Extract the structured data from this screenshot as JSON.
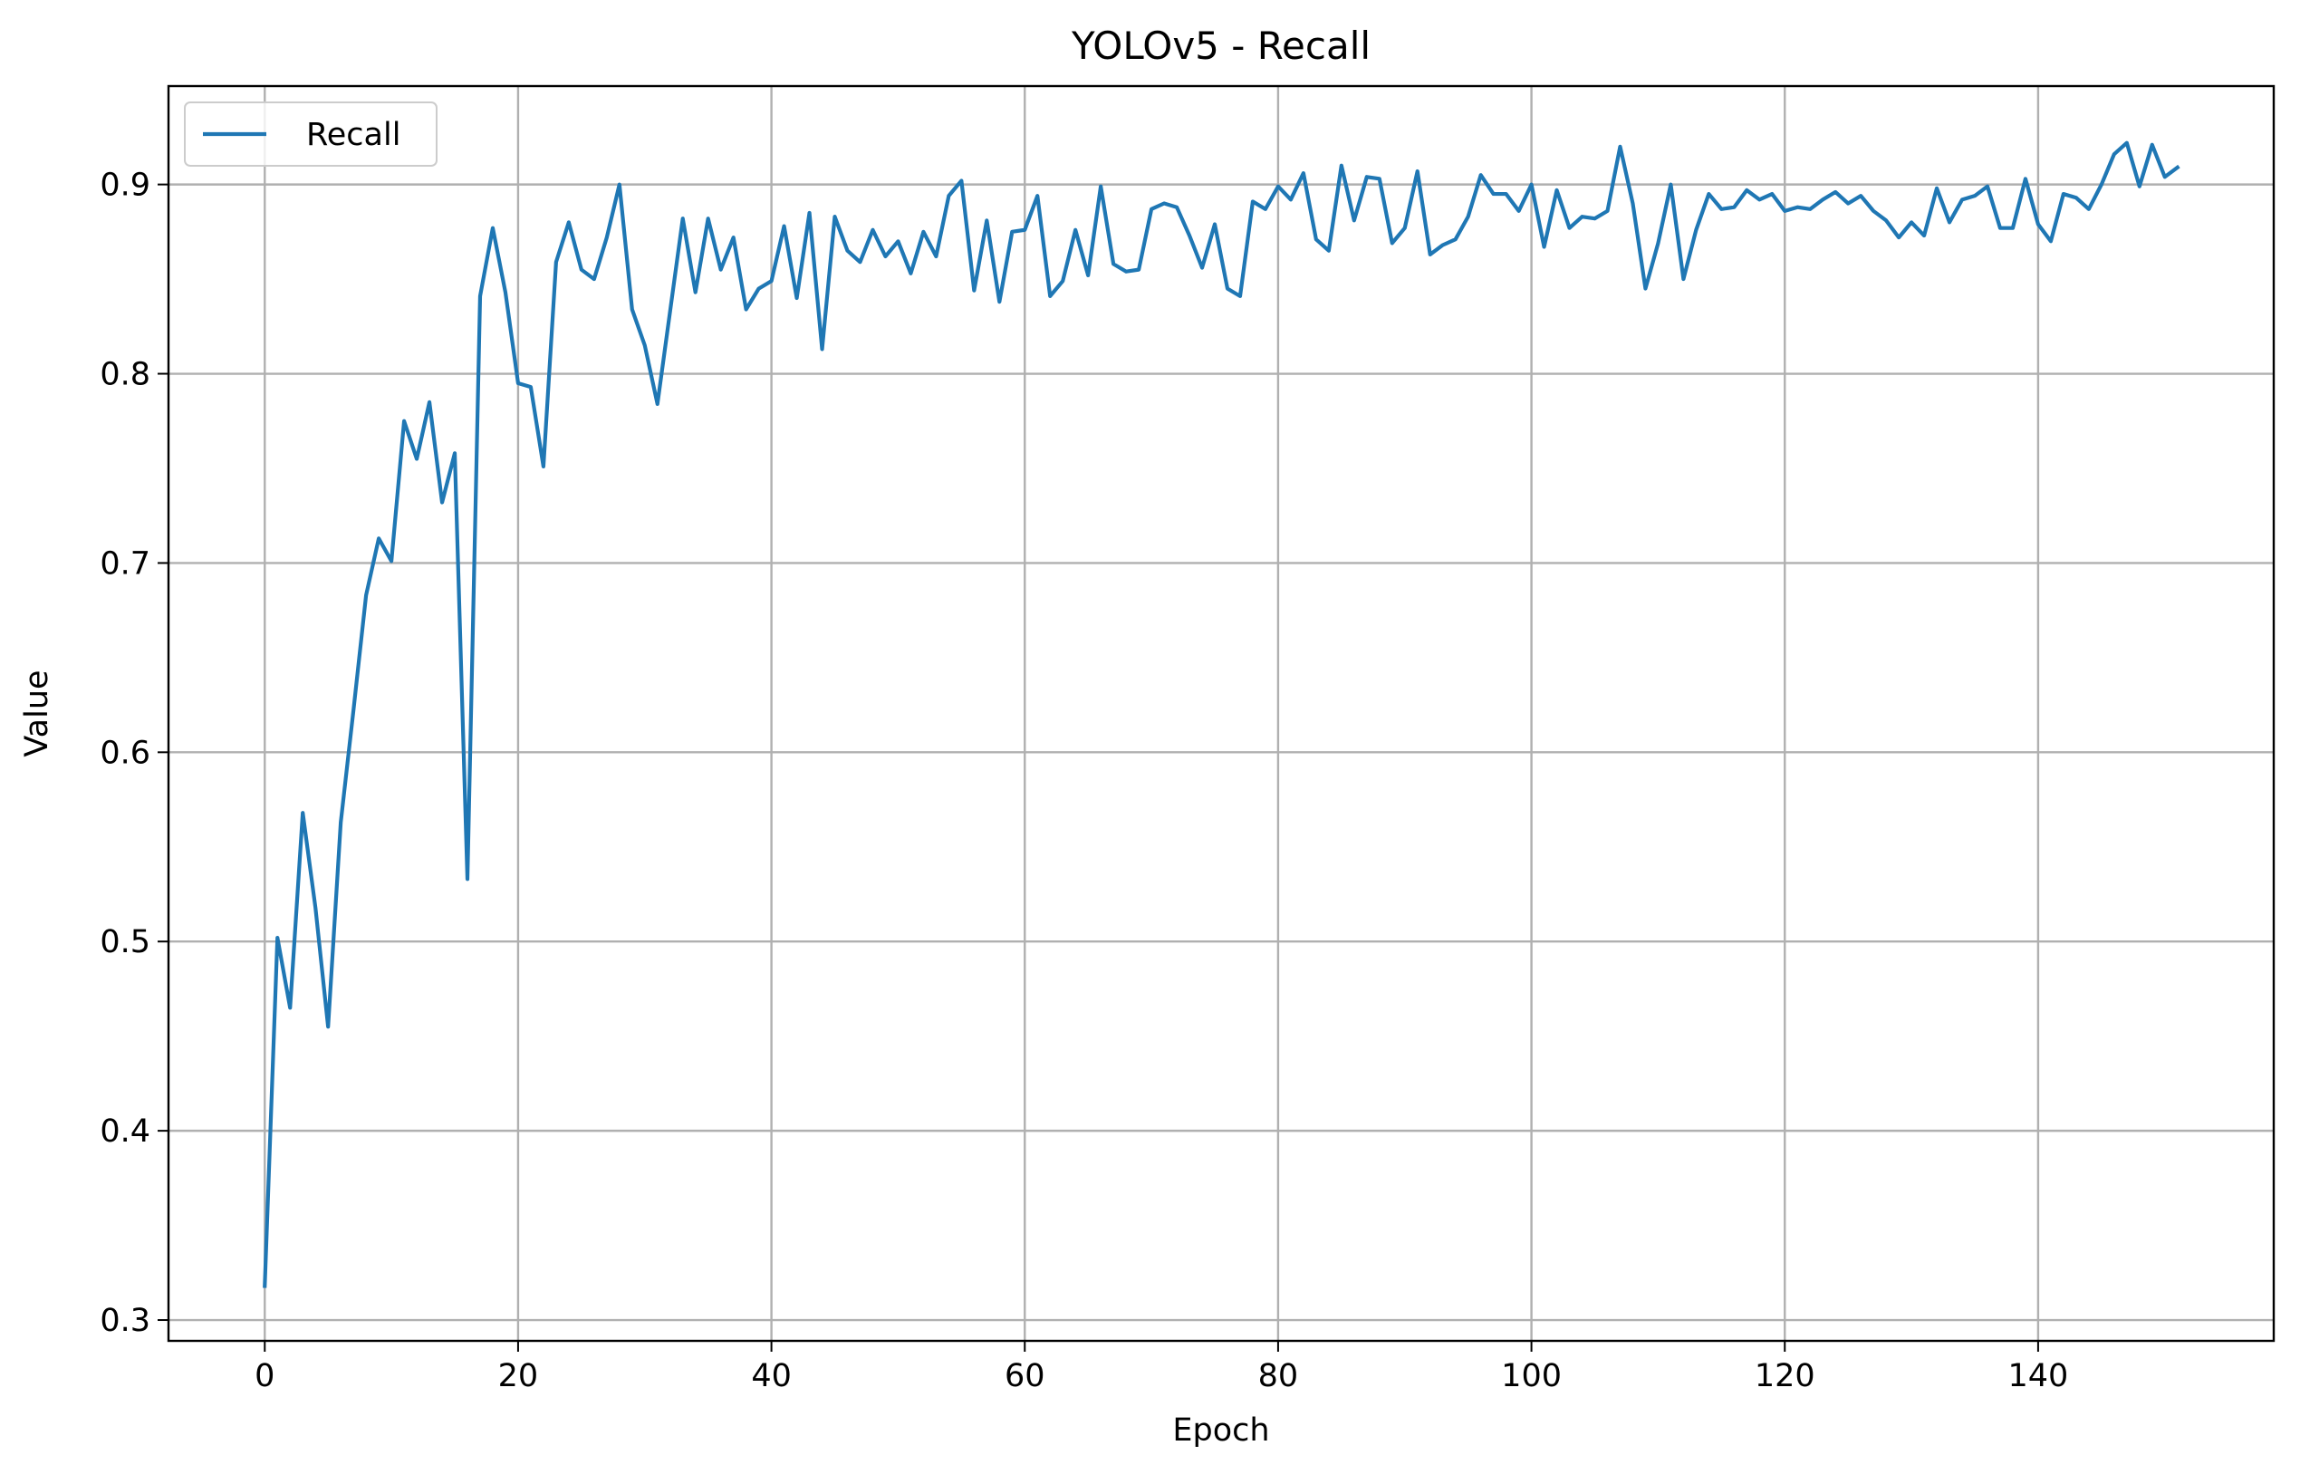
{
  "chart_data": {
    "type": "line",
    "title": "YOLOv5 - Recall",
    "xlabel": "Epoch",
    "ylabel": "Value",
    "xlim": [
      -7.6,
      158.6
    ],
    "ylim": [
      0.289,
      0.952
    ],
    "xticks": [
      0,
      20,
      40,
      60,
      80,
      100,
      120,
      140
    ],
    "yticks": [
      0.3,
      0.4,
      0.5,
      0.6,
      0.7,
      0.8,
      0.9
    ],
    "grid": true,
    "legend_position": "upper-left",
    "colors": {
      "series": "#1f77b4",
      "grid": "#b0b0b0"
    },
    "series": [
      {
        "name": "Recall",
        "x": [
          0,
          1,
          2,
          3,
          4,
          5,
          6,
          7,
          8,
          9,
          10,
          11,
          12,
          13,
          14,
          15,
          16,
          17,
          18,
          19,
          20,
          21,
          22,
          23,
          24,
          25,
          26,
          27,
          28,
          29,
          30,
          31,
          32,
          33,
          34,
          35,
          36,
          37,
          38,
          39,
          40,
          41,
          42,
          43,
          44,
          45,
          46,
          47,
          48,
          49,
          50,
          51,
          52,
          53,
          54,
          55,
          56,
          57,
          58,
          59,
          60,
          61,
          62,
          63,
          64,
          65,
          66,
          67,
          68,
          69,
          70,
          71,
          72,
          73,
          74,
          75,
          76,
          77,
          78,
          79,
          80,
          81,
          82,
          83,
          84,
          85,
          86,
          87,
          88,
          89,
          90,
          91,
          92,
          93,
          94,
          95,
          96,
          97,
          98,
          99,
          100,
          101,
          102,
          103,
          104,
          105,
          106,
          107,
          108,
          109,
          110,
          111,
          112,
          113,
          114,
          115,
          116,
          117,
          118,
          119,
          120,
          121,
          122,
          123,
          124,
          125,
          126,
          127,
          128,
          129,
          130,
          131,
          132,
          133,
          134,
          135,
          136,
          137,
          138,
          139,
          140,
          141,
          142,
          143,
          144,
          145,
          146,
          147,
          148,
          149,
          150,
          151
        ],
        "y": [
          0.318,
          0.502,
          0.465,
          0.568,
          0.518,
          0.455,
          0.563,
          0.622,
          0.683,
          0.713,
          0.701,
          0.775,
          0.755,
          0.785,
          0.732,
          0.758,
          0.533,
          0.841,
          0.877,
          0.843,
          0.795,
          0.793,
          0.751,
          0.859,
          0.88,
          0.855,
          0.85,
          0.872,
          0.9,
          0.834,
          0.815,
          0.784,
          0.833,
          0.882,
          0.843,
          0.882,
          0.855,
          0.872,
          0.834,
          0.845,
          0.849,
          0.878,
          0.84,
          0.885,
          0.813,
          0.883,
          0.865,
          0.859,
          0.876,
          0.862,
          0.87,
          0.853,
          0.875,
          0.862,
          0.894,
          0.902,
          0.844,
          0.881,
          0.838,
          0.875,
          0.876,
          0.894,
          0.841,
          0.849,
          0.876,
          0.852,
          0.899,
          0.858,
          0.854,
          0.855,
          0.887,
          0.89,
          0.888,
          0.873,
          0.856,
          0.879,
          0.845,
          0.841,
          0.891,
          0.887,
          0.899,
          0.892,
          0.906,
          0.871,
          0.865,
          0.91,
          0.881,
          0.904,
          0.903,
          0.869,
          0.877,
          0.907,
          0.863,
          0.868,
          0.871,
          0.883,
          0.905,
          0.895,
          0.895,
          0.886,
          0.9,
          0.867,
          0.897,
          0.877,
          0.883,
          0.882,
          0.886,
          0.92,
          0.89,
          0.845,
          0.869,
          0.9,
          0.85,
          0.876,
          0.895,
          0.887,
          0.888,
          0.897,
          0.892,
          0.895,
          0.886,
          0.888,
          0.887,
          0.892,
          0.896,
          0.89,
          0.894,
          0.886,
          0.881,
          0.872,
          0.88,
          0.873,
          0.898,
          0.88,
          0.892,
          0.894,
          0.899,
          0.877,
          0.877,
          0.903,
          0.879,
          0.87,
          0.895,
          0.893,
          0.887,
          0.9,
          0.916,
          0.922,
          0.899,
          0.921,
          0.904,
          0.909
        ]
      }
    ]
  }
}
